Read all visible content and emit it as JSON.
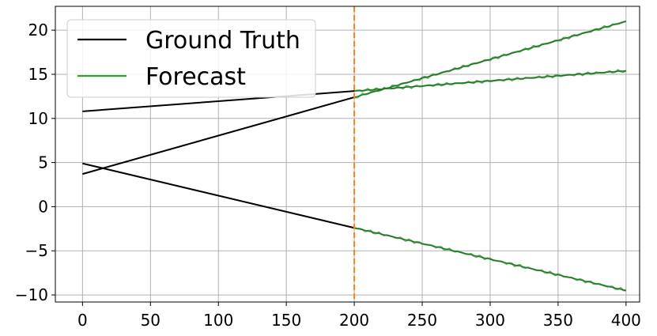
{
  "chart_data": {
    "type": "line",
    "title": "",
    "xlabel": "",
    "ylabel": "",
    "xlim": [
      -20,
      410
    ],
    "ylim": [
      -10.8,
      22.7
    ],
    "xticks": [
      0,
      50,
      100,
      150,
      200,
      250,
      300,
      350,
      400
    ],
    "yticks": [
      -10,
      -5,
      0,
      5,
      10,
      15,
      20
    ],
    "xtick_labels": [
      "0",
      "50",
      "100",
      "150",
      "200",
      "250",
      "300",
      "350",
      "400"
    ],
    "ytick_labels": [
      "−10",
      "−5",
      "0",
      "5",
      "10",
      "15",
      "20"
    ],
    "grid": true,
    "legend_position": "top-left",
    "forecast_start": 200,
    "series": [
      {
        "name": "Ground Truth",
        "color": "#000000",
        "style": "solid",
        "lines": [
          {
            "x": [
              0,
              200
            ],
            "y": [
              10.8,
              13.1
            ]
          },
          {
            "x": [
              0,
              200
            ],
            "y": [
              3.7,
              12.4
            ]
          },
          {
            "x": [
              0,
              200
            ],
            "y": [
              4.9,
              -2.4
            ]
          }
        ]
      },
      {
        "name": "Forecast",
        "color": "#2ca02c",
        "style": "solid",
        "lines": [
          {
            "x": [
              200,
              400
            ],
            "y": [
              13.1,
              15.4
            ]
          },
          {
            "x": [
              200,
              400
            ],
            "y": [
              12.4,
              21.0
            ]
          },
          {
            "x": [
              200,
              400
            ],
            "y": [
              -2.4,
              -9.5
            ]
          }
        ]
      }
    ],
    "vline": {
      "x": 200,
      "color": "#ff7f0e",
      "style": "dashed"
    }
  }
}
